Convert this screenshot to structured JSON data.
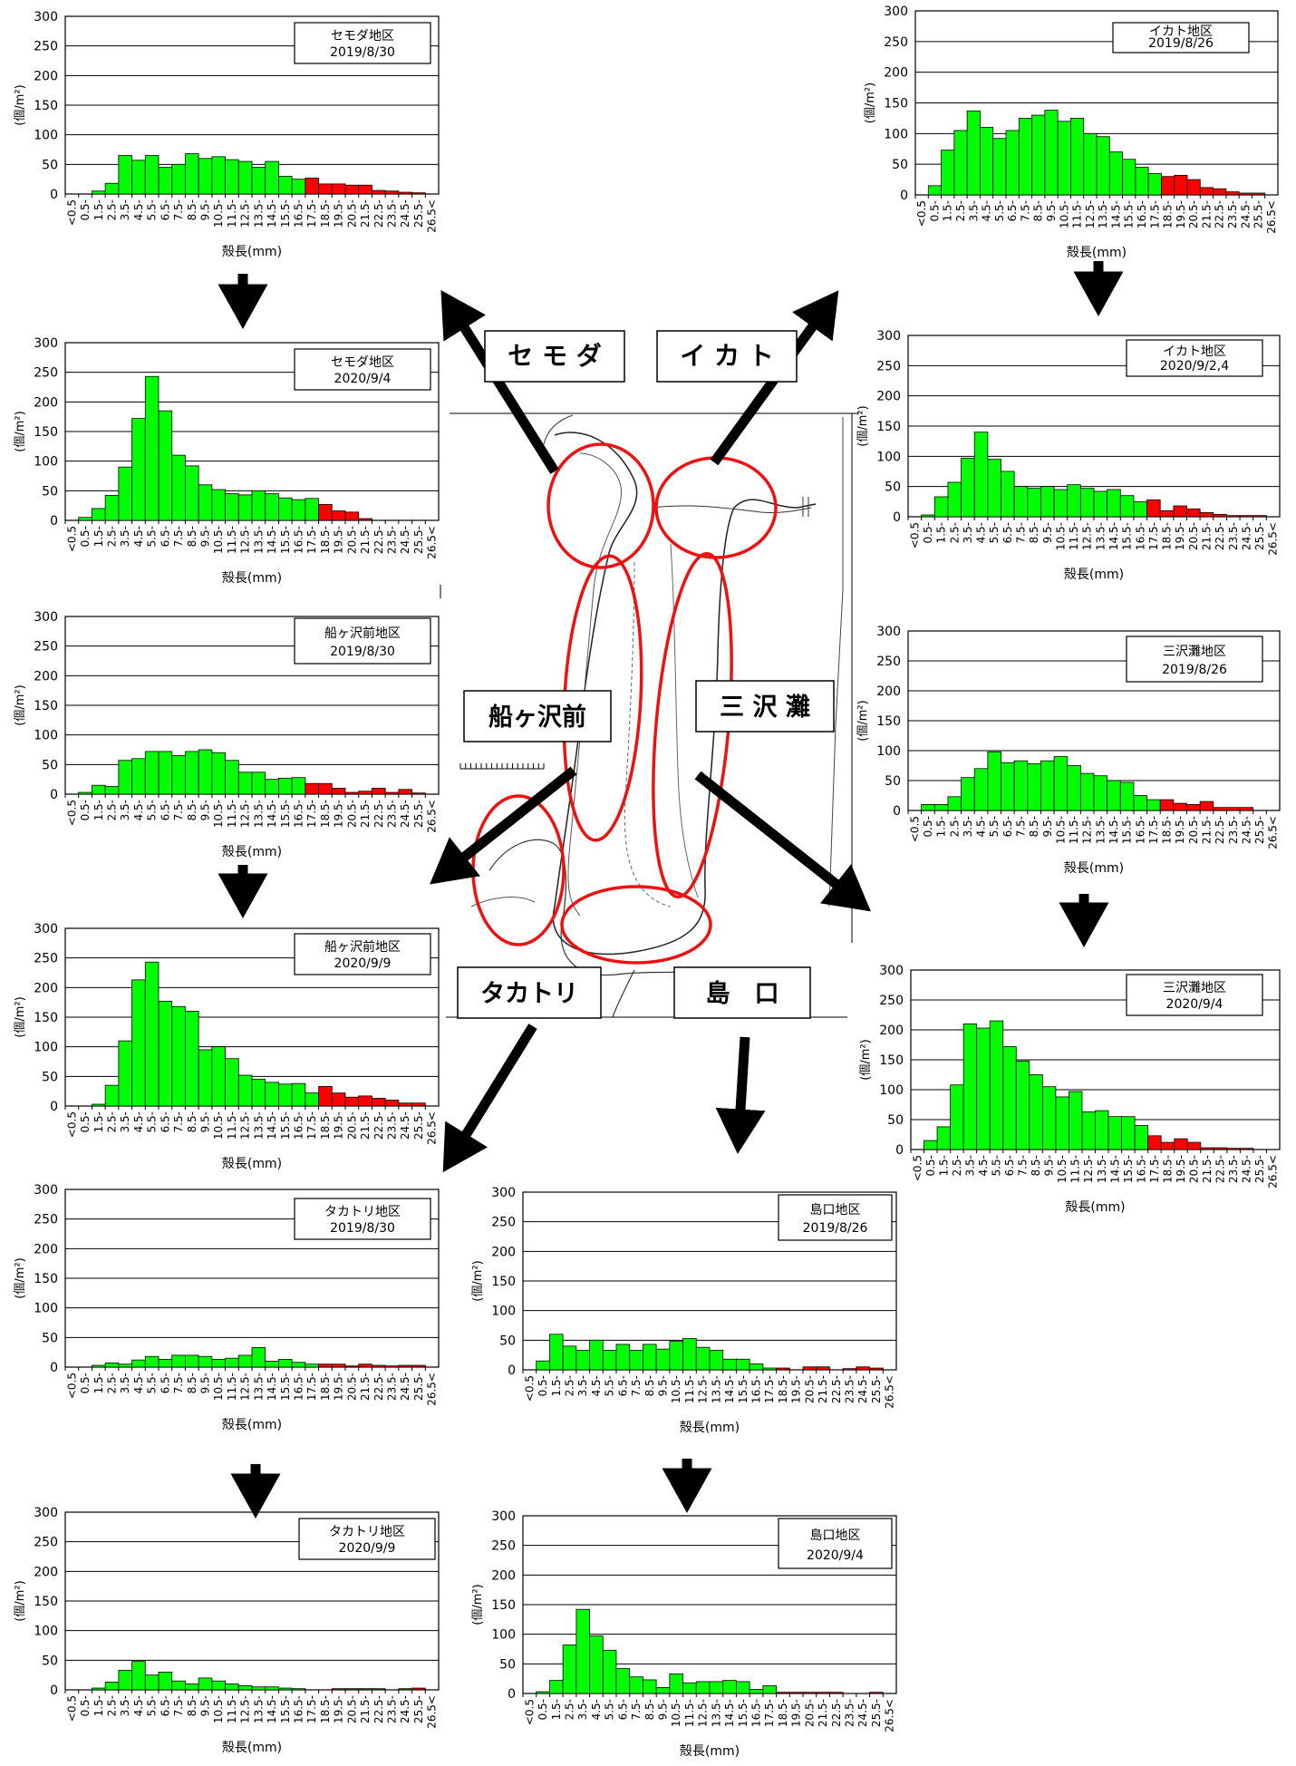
{
  "colors": {
    "normal_bar": "#00ff00",
    "large_bar": "#ff0000",
    "bar_outline": "#000000",
    "arrow": "#000000",
    "circle": "#ee1111"
  },
  "map_labels": {
    "setoda": "セ モ ダ",
    "ikato": "イ カ ト",
    "funagasawamae": "船ヶ沢前",
    "misawanada": "三 沢 灘",
    "takatori": "タカトリ",
    "shimaguchi": "島　口"
  },
  "chart_data": [
    {
      "id": "setoda-2019",
      "type": "bar",
      "legend_title": "セモダ地区",
      "legend_date": "2019/8/30",
      "ylabel": "(個/m²)",
      "xlabel": "殻長(mm)",
      "ylim": [
        0,
        300
      ],
      "yticks": [
        0,
        50,
        100,
        150,
        200,
        250,
        300
      ],
      "categories": [
        "<0.5",
        "0.5-",
        "1.5-",
        "2.5-",
        "3.5-",
        "4.5-",
        "5.5-",
        "6.5-",
        "7.5-",
        "8.5-",
        "9.5-",
        "10.5-",
        "11.5-",
        "12.5-",
        "13.5-",
        "14.5-",
        "15.5-",
        "16.5-",
        "17.5-",
        "18.5-",
        "19.5-",
        "20.5-",
        "21.5-",
        "22.5-",
        "23.5-",
        "24.5-",
        "25.5-",
        "26.5<"
      ],
      "values": [
        0,
        0,
        5,
        18,
        65,
        57,
        65,
        45,
        50,
        68,
        60,
        63,
        58,
        55,
        45,
        55,
        30,
        25,
        27,
        17,
        17,
        15,
        15,
        6,
        5,
        3,
        2,
        0
      ],
      "red_from_index": 18
    },
    {
      "id": "ikato-2019",
      "type": "bar",
      "legend_title": "イカト地区",
      "legend_date": "2019/8/26",
      "ylabel": "(個/m²)",
      "xlabel": "殻長(mm)",
      "ylim": [
        0,
        300
      ],
      "yticks": [
        0,
        50,
        100,
        150,
        200,
        250,
        300
      ],
      "categories": [
        "<0.5",
        "0.5-",
        "1.5-",
        "2.5-",
        "3.5-",
        "4.5-",
        "5.5-",
        "6.5-",
        "7.5-",
        "8.5-",
        "9.5-",
        "10.5-",
        "11.5-",
        "12.5-",
        "13.5-",
        "14.5-",
        "15.5-",
        "16.5-",
        "17.5-",
        "18.5-",
        "19.5-",
        "20.5-",
        "21.5-",
        "22.5-",
        "23.5-",
        "24.5-",
        "25.5-",
        "26.5<"
      ],
      "values": [
        0,
        15,
        73,
        105,
        137,
        110,
        92,
        105,
        125,
        130,
        138,
        120,
        125,
        100,
        95,
        70,
        58,
        45,
        35,
        30,
        32,
        25,
        12,
        10,
        5,
        3,
        3,
        0
      ],
      "red_from_index": 19
    },
    {
      "id": "setoda-2020",
      "type": "bar",
      "legend_title": "セモダ地区",
      "legend_date": "2020/9/4",
      "ylabel": "(個/m²)",
      "xlabel": "殻長(mm)",
      "ylim": [
        0,
        300
      ],
      "yticks": [
        0,
        50,
        100,
        150,
        200,
        250,
        300
      ],
      "categories": [
        "<0.5",
        "0.5-",
        "1.5-",
        "2.5-",
        "3.5-",
        "4.5-",
        "5.5-",
        "6.5-",
        "7.5-",
        "8.5-",
        "9.5-",
        "10.5-",
        "11.5-",
        "12.5-",
        "13.5-",
        "14.5-",
        "15.5-",
        "16.5-",
        "17.5-",
        "18.5-",
        "19.5-",
        "20.5-",
        "21.5-",
        "22.5-",
        "23.5-",
        "24.5-",
        "25.5-",
        "26.5<"
      ],
      "values": [
        0,
        5,
        20,
        42,
        90,
        172,
        243,
        185,
        110,
        92,
        60,
        52,
        45,
        43,
        50,
        45,
        38,
        35,
        37,
        27,
        16,
        14,
        3,
        0,
        0,
        0,
        0,
        0
      ],
      "red_from_index": 19
    },
    {
      "id": "ikato-2020",
      "type": "bar",
      "legend_title": "イカト地区",
      "legend_date": "2020/9/2,4",
      "ylabel": "(個/m²)",
      "xlabel": "殻長(mm)",
      "ylim": [
        0,
        300
      ],
      "yticks": [
        0,
        50,
        100,
        150,
        200,
        250,
        300
      ],
      "categories": [
        "<0.5",
        "0.5-",
        "1.5-",
        "2.5-",
        "3.5-",
        "4.5-",
        "5.5-",
        "6.5-",
        "7.5-",
        "8.5-",
        "9.5-",
        "10.5-",
        "11.5-",
        "12.5-",
        "13.5-",
        "14.5-",
        "15.5-",
        "16.5-",
        "17.5-",
        "18.5-",
        "19.5-",
        "20.5-",
        "21.5-",
        "22.5-",
        "23.5-",
        "24.5-",
        "25.5-",
        "26.5<"
      ],
      "values": [
        0,
        3,
        33,
        57,
        97,
        140,
        95,
        75,
        50,
        47,
        50,
        45,
        53,
        47,
        42,
        45,
        35,
        25,
        28,
        10,
        18,
        13,
        7,
        4,
        2,
        2,
        2,
        0
      ],
      "red_from_index": 18
    },
    {
      "id": "funagasawamae-2019",
      "type": "bar",
      "legend_title": "船ヶ沢前地区",
      "legend_date": "2019/8/30",
      "ylabel": "(個/m²)",
      "xlabel": "殻長(mm)",
      "ylim": [
        0,
        300
      ],
      "yticks": [
        0,
        50,
        100,
        150,
        200,
        250,
        300
      ],
      "categories": [
        "<0.5",
        "0.5-",
        "1.5-",
        "2.5-",
        "3.5-",
        "4.5-",
        "5.5-",
        "6.5-",
        "7.5-",
        "8.5-",
        "9.5-",
        "10.5-",
        "11.5-",
        "12.5-",
        "13.5-",
        "14.5-",
        "15.5-",
        "16.5-",
        "17.5-",
        "18.5-",
        "19.5-",
        "20.5-",
        "21.5-",
        "22.5-",
        "23.5-",
        "24.5-",
        "25.5-",
        "26.5<"
      ],
      "values": [
        0,
        3,
        15,
        13,
        57,
        60,
        72,
        72,
        65,
        72,
        75,
        70,
        57,
        37,
        37,
        25,
        27,
        28,
        18,
        18,
        10,
        3,
        5,
        10,
        3,
        8,
        2,
        0
      ],
      "red_from_index": 18
    },
    {
      "id": "misawanada-2019",
      "type": "bar",
      "legend_title": "三沢灘地区",
      "legend_date": "2019/8/26",
      "ylabel": "(個/m²)",
      "xlabel": "殻長(mm)",
      "ylim": [
        0,
        300
      ],
      "yticks": [
        0,
        50,
        100,
        150,
        200,
        250,
        300
      ],
      "categories": [
        "<0.5",
        "0.5-",
        "1.5-",
        "2.5-",
        "3.5-",
        "4.5-",
        "5.5-",
        "6.5-",
        "7.5-",
        "8.5-",
        "9.5-",
        "10.5-",
        "11.5-",
        "12.5-",
        "13.5-",
        "14.5-",
        "15.5-",
        "16.5-",
        "17.5-",
        "18.5-",
        "19.5-",
        "20.5-",
        "21.5-",
        "22.5-",
        "23.5-",
        "24.5-",
        "25.5-",
        "26.5<"
      ],
      "values": [
        0,
        10,
        10,
        23,
        55,
        70,
        98,
        80,
        83,
        78,
        83,
        90,
        75,
        62,
        58,
        50,
        47,
        25,
        18,
        18,
        12,
        10,
        15,
        5,
        5,
        5,
        0,
        0
      ],
      "red_from_index": 19
    },
    {
      "id": "funagasawamae-2020",
      "type": "bar",
      "legend_title": "船ヶ沢前地区",
      "legend_date": "2020/9/9",
      "ylabel": "(個/m²)",
      "xlabel": "殻長(mm)",
      "ylim": [
        0,
        300
      ],
      "yticks": [
        0,
        50,
        100,
        150,
        200,
        250,
        300
      ],
      "categories": [
        "<0.5",
        "0.5-",
        "1.5-",
        "2.5-",
        "3.5-",
        "4.5-",
        "5.5-",
        "6.5-",
        "7.5-",
        "8.5-",
        "9.5-",
        "10.5-",
        "11.5-",
        "12.5-",
        "13.5-",
        "14.5-",
        "15.5-",
        "16.5-",
        "17.5-",
        "18.5-",
        "19.5-",
        "20.5-",
        "21.5-",
        "22.5-",
        "23.5-",
        "24.5-",
        "25.5-",
        "26.5<"
      ],
      "values": [
        0,
        0,
        3,
        35,
        110,
        213,
        243,
        177,
        168,
        160,
        95,
        100,
        80,
        52,
        45,
        40,
        37,
        38,
        22,
        33,
        22,
        15,
        17,
        13,
        10,
        5,
        5,
        0
      ],
      "red_from_index": 19
    },
    {
      "id": "misawanada-2020",
      "type": "bar",
      "legend_title": "三沢灘地区",
      "legend_date": "2020/9/4",
      "ylabel": "(個/m²)",
      "xlabel": "殻長(mm)",
      "ylim": [
        0,
        300
      ],
      "yticks": [
        0,
        50,
        100,
        150,
        200,
        250,
        300
      ],
      "categories": [
        "<0.5",
        "0.5-",
        "1.5-",
        "2.5-",
        "3.5-",
        "4.5-",
        "5.5-",
        "6.5-",
        "7.5-",
        "8.5-",
        "9.5-",
        "10.5-",
        "11.5-",
        "12.5-",
        "13.5-",
        "14.5-",
        "15.5-",
        "16.5-",
        "17.5-",
        "18.5-",
        "19.5-",
        "20.5-",
        "21.5-",
        "22.5-",
        "23.5-",
        "24.5-",
        "25.5-",
        "26.5<"
      ],
      "values": [
        0,
        15,
        38,
        108,
        210,
        203,
        215,
        172,
        148,
        125,
        105,
        88,
        97,
        63,
        65,
        55,
        55,
        40,
        23,
        12,
        18,
        12,
        3,
        3,
        2,
        2,
        0,
        0
      ],
      "red_from_index": 18
    },
    {
      "id": "takatori-2019",
      "type": "bar",
      "legend_title": "タカトリ地区",
      "legend_date": "2019/8/30",
      "ylabel": "(個/m²)",
      "xlabel": "殻長(mm)",
      "ylim": [
        0,
        300
      ],
      "yticks": [
        0,
        50,
        100,
        150,
        200,
        250,
        300
      ],
      "categories": [
        "<0.5",
        "0.5-",
        "1.5-",
        "2.5-",
        "3.5-",
        "4.5-",
        "5.5-",
        "6.5-",
        "7.5-",
        "8.5-",
        "9.5-",
        "10.5-",
        "11.5-",
        "12.5-",
        "13.5-",
        "14.5-",
        "15.5-",
        "16.5-",
        "17.5-",
        "18.5-",
        "19.5-",
        "20.5-",
        "21.5-",
        "22.5-",
        "23.5-",
        "24.5-",
        "25.5-",
        "26.5<"
      ],
      "values": [
        0,
        0,
        3,
        7,
        5,
        12,
        18,
        13,
        20,
        20,
        18,
        13,
        15,
        20,
        33,
        10,
        13,
        8,
        5,
        5,
        5,
        2,
        5,
        3,
        2,
        3,
        3,
        0
      ],
      "red_from_index": 19
    },
    {
      "id": "shimaguchi-2019",
      "type": "bar",
      "legend_title": "島口地区",
      "legend_date": "2019/8/26",
      "ylabel": "(個/m²)",
      "xlabel": "殻長(mm)",
      "ylim": [
        0,
        300
      ],
      "yticks": [
        0,
        50,
        100,
        150,
        200,
        250,
        300
      ],
      "categories": [
        "<0.5",
        "0.5-",
        "1.5-",
        "2.5-",
        "3.5-",
        "4.5-",
        "5.5-",
        "6.5-",
        "7.5-",
        "8.5-",
        "9.5-",
        "10.5-",
        "11.5-",
        "12.5-",
        "13.5-",
        "14.5-",
        "15.5-",
        "16.5-",
        "17.5-",
        "18.5-",
        "19.5-",
        "20.5-",
        "21.5-",
        "22.5-",
        "23.5-",
        "24.5-",
        "25.5-",
        "26.5<"
      ],
      "values": [
        0,
        15,
        60,
        40,
        33,
        50,
        33,
        43,
        33,
        43,
        35,
        48,
        53,
        38,
        33,
        18,
        18,
        10,
        3,
        3,
        0,
        5,
        5,
        0,
        2,
        5,
        3,
        0
      ],
      "red_from_index": 19
    },
    {
      "id": "takatori-2020",
      "type": "bar",
      "legend_title": "タカトリ地区",
      "legend_date": "2020/9/9",
      "ylabel": "(個/m²)",
      "xlabel": "殻長(mm)",
      "ylim": [
        0,
        300
      ],
      "yticks": [
        0,
        50,
        100,
        150,
        200,
        250,
        300
      ],
      "categories": [
        "<0.5",
        "0.5-",
        "1.5-",
        "2.5-",
        "3.5-",
        "4.5-",
        "5.5-",
        "6.5-",
        "7.5-",
        "8.5-",
        "9.5-",
        "10.5-",
        "11.5-",
        "12.5-",
        "13.5-",
        "14.5-",
        "15.5-",
        "16.5-",
        "17.5-",
        "18.5-",
        "19.5-",
        "20.5-",
        "21.5-",
        "22.5-",
        "23.5-",
        "24.5-",
        "25.5-",
        "26.5<"
      ],
      "values": [
        0,
        0,
        3,
        13,
        33,
        48,
        25,
        30,
        15,
        10,
        20,
        15,
        10,
        7,
        5,
        5,
        3,
        2,
        0,
        0,
        2,
        2,
        2,
        2,
        0,
        2,
        3,
        0
      ],
      "red_from_index": 19
    },
    {
      "id": "shimaguchi-2020",
      "type": "bar",
      "legend_title": "島口地区",
      "legend_date": "2020/9/4",
      "ylabel": "(個/m²)",
      "xlabel": "殻長(mm)",
      "ylim": [
        0,
        300
      ],
      "yticks": [
        0,
        50,
        100,
        150,
        200,
        250,
        300
      ],
      "categories": [
        "<0.5",
        "0.5-",
        "1.5-",
        "2.5-",
        "3.5-",
        "4.5-",
        "5.5-",
        "6.5-",
        "7.5-",
        "8.5-",
        "9.5-",
        "10.5-",
        "11.5-",
        "12.5-",
        "13.5-",
        "14.5-",
        "15.5-",
        "16.5-",
        "17.5-",
        "18.5-",
        "19.5-",
        "20.5-",
        "21.5-",
        "22.5-",
        "23.5-",
        "24.5-",
        "25.5-",
        "26.5<"
      ],
      "values": [
        0,
        3,
        22,
        82,
        142,
        97,
        73,
        42,
        28,
        23,
        10,
        33,
        18,
        20,
        20,
        22,
        20,
        7,
        13,
        2,
        2,
        2,
        2,
        2,
        0,
        0,
        2,
        0
      ],
      "red_from_index": 19
    }
  ]
}
